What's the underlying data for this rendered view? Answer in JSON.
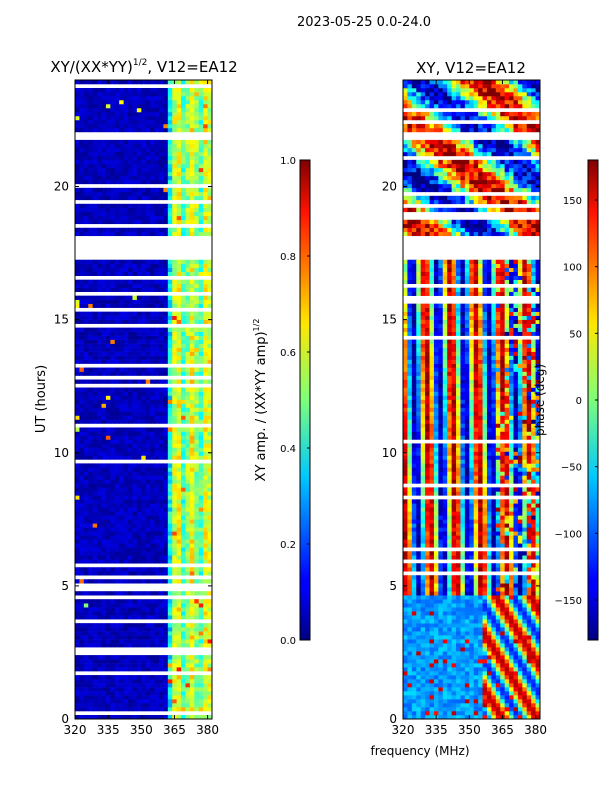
{
  "suptitle": "2023-05-25 0.0-24.0",
  "xlabel_shared": "frequency (MHz)",
  "chart_data": [
    {
      "type": "heatmap",
      "title": "XY/(XX*YY)",
      "title_exponent": "1/2",
      "title_suffix": ", V12=EA12",
      "xlabel": "",
      "ylabel": "UT (hours)",
      "x_ticks": [
        320,
        335,
        350,
        365,
        380
      ],
      "xlim": [
        320,
        382
      ],
      "y_ticks": [
        0,
        5,
        10,
        15,
        20
      ],
      "ylim": [
        0,
        24
      ],
      "colormap": "jet",
      "colorbar": {
        "label": "XY amp. / (XX*YY amp)",
        "label_exponent": "1/2",
        "range": [
          0.0,
          1.0
        ],
        "ticks": [
          "0.0",
          "0.2",
          "0.4",
          "0.6",
          "0.8",
          "1.0"
        ]
      },
      "data_gaps_hours": [
        [
          17.3,
          18.1
        ],
        [
          21.7,
          22.1
        ]
      ],
      "strong_band_mhz": [
        363,
        382
      ]
    },
    {
      "type": "heatmap",
      "title": "XY, V12=EA12",
      "xlabel": "frequency (MHz)",
      "ylabel": "",
      "x_ticks": [
        320,
        335,
        350,
        365,
        380
      ],
      "xlim": [
        320,
        382
      ],
      "y_ticks": [
        0,
        5,
        10,
        15,
        20
      ],
      "ylim": [
        0,
        24
      ],
      "colormap": "jet",
      "colorbar": {
        "label": "phase (deg)",
        "range": [
          -180,
          180
        ],
        "ticks": [
          "-150",
          "-100",
          "-50",
          "0",
          "50",
          "100",
          "150"
        ]
      },
      "data_gaps_hours": [
        [
          17.3,
          18.1
        ],
        [
          21.7,
          22.1
        ]
      ]
    }
  ]
}
